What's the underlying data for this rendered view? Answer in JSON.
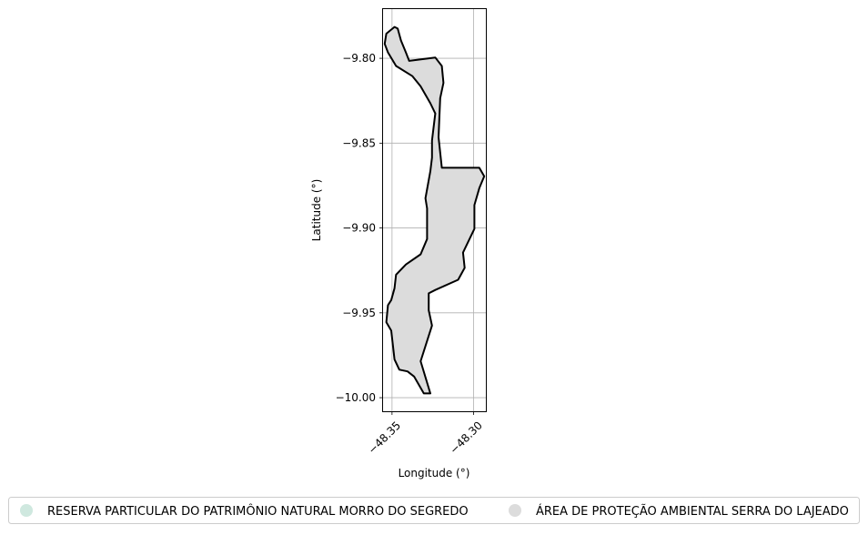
{
  "chart_data": {
    "type": "map",
    "xlabel": "Longitude (°)",
    "ylabel": "Latitude (°)",
    "xlim": [
      -48.3555,
      -48.2925
    ],
    "ylim": [
      -10.008,
      -9.771
    ],
    "xticks": [
      {
        "value": -48.35,
        "label": "−48.35"
      },
      {
        "value": -48.3,
        "label": "−48.30"
      }
    ],
    "yticks": [
      {
        "value": -9.8,
        "label": "−9.80"
      },
      {
        "value": -9.85,
        "label": "−9.85"
      },
      {
        "value": -9.9,
        "label": "−9.90"
      },
      {
        "value": -9.95,
        "label": "−9.95"
      },
      {
        "value": -10.0,
        "label": "−10.00"
      }
    ],
    "grid": true,
    "legend_position": "bottom",
    "regions": [
      {
        "name": "ÁREA DE PROTEÇÃO AMBIENTAL SERRA DO LAJEADO",
        "fill": "#dcdcdc",
        "outline": "#000000",
        "boundary": [
          [
            -48.3485,
            -9.7815
          ],
          [
            -48.3465,
            -9.7825
          ],
          [
            -48.3445,
            -9.7895
          ],
          [
            -48.3415,
            -9.7965
          ],
          [
            -48.3395,
            -9.8015
          ],
          [
            -48.3235,
            -9.7995
          ],
          [
            -48.3195,
            -9.8045
          ],
          [
            -48.3185,
            -9.8145
          ],
          [
            -48.3205,
            -9.8235
          ],
          [
            -48.3215,
            -9.8465
          ],
          [
            -48.3195,
            -9.8645
          ],
          [
            -48.2965,
            -9.8645
          ],
          [
            -48.2935,
            -9.8695
          ],
          [
            -48.2965,
            -9.8765
          ],
          [
            -48.2995,
            -9.8865
          ],
          [
            -48.2995,
            -9.9005
          ],
          [
            -48.3065,
            -9.9145
          ],
          [
            -48.3055,
            -9.9235
          ],
          [
            -48.3095,
            -9.9305
          ],
          [
            -48.3235,
            -9.9365
          ],
          [
            -48.3275,
            -9.9385
          ],
          [
            -48.3275,
            -9.9485
          ],
          [
            -48.3255,
            -9.9575
          ],
          [
            -48.3325,
            -9.9785
          ],
          [
            -48.3265,
            -9.9975
          ],
          [
            -48.3305,
            -9.9975
          ],
          [
            -48.3365,
            -9.9875
          ],
          [
            -48.3405,
            -9.9845
          ],
          [
            -48.3455,
            -9.9835
          ],
          [
            -48.3485,
            -9.9775
          ],
          [
            -48.3505,
            -9.9605
          ],
          [
            -48.3535,
            -9.9555
          ],
          [
            -48.3525,
            -9.9455
          ],
          [
            -48.3505,
            -9.9425
          ],
          [
            -48.3485,
            -9.9355
          ],
          [
            -48.3475,
            -9.9275
          ],
          [
            -48.3415,
            -9.9215
          ],
          [
            -48.3325,
            -9.9155
          ],
          [
            -48.3285,
            -9.9065
          ],
          [
            -48.3285,
            -9.8885
          ],
          [
            -48.3295,
            -9.8825
          ],
          [
            -48.3265,
            -9.8665
          ],
          [
            -48.3255,
            -9.8585
          ],
          [
            -48.3255,
            -9.8485
          ],
          [
            -48.3235,
            -9.8325
          ],
          [
            -48.3265,
            -9.8265
          ],
          [
            -48.3325,
            -9.8165
          ],
          [
            -48.3375,
            -9.8105
          ],
          [
            -48.3475,
            -9.8045
          ],
          [
            -48.3525,
            -9.7965
          ],
          [
            -48.3545,
            -9.7915
          ],
          [
            -48.3535,
            -9.7855
          ],
          [
            -48.3485,
            -9.7815
          ]
        ]
      }
    ],
    "legend": [
      {
        "label": "RESERVA PARTICULAR DO PATRIMÔNIO NATURAL MORRO DO SEGREDO",
        "color": "#cfe8df"
      },
      {
        "label": "ÁREA DE PROTEÇÃO AMBIENTAL SERRA DO LAJEADO",
        "color": "#dcdcdc"
      }
    ]
  }
}
